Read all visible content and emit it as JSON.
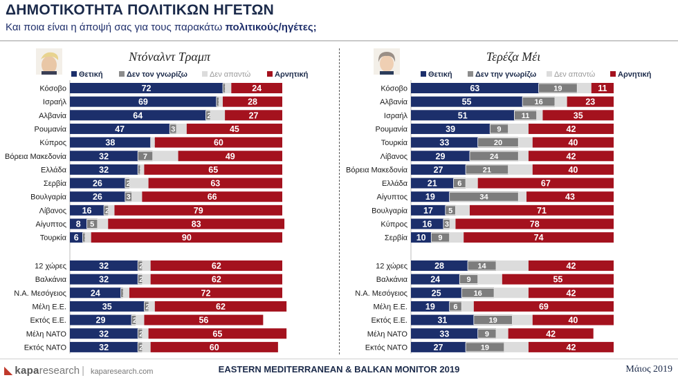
{
  "header": {
    "title": "ΔΗΜΟΤΙΚΟΤΗΤΑ ΠΟΛΙΤΙΚΩΝ ΗΓΕΤΩΝ",
    "subtitle_plain": "Και ποια είναι η άποψή σας για τους παρακάτω ",
    "subtitle_bold": "πολιτικούς/ηγέτες;"
  },
  "footer": {
    "brand_kapa": "kapa",
    "brand_research": "research",
    "site": "kaparesearch.com",
    "center": "EASTERN MEDITERRANEAN & BALKAN MONITOR 2019",
    "date": "Μάιος 2019"
  },
  "colors": {
    "positive": "#1c2f6b",
    "unknown": "#8c8c8c",
    "no_answer": "#dcdcdc",
    "negative": "#a4121e"
  },
  "chart_data": [
    {
      "type": "bar",
      "stacked": true,
      "orientation": "horizontal",
      "title": "Ντόναλντ Τραμπ",
      "legend": [
        "Θετική",
        "Δεν τον γνωρίζω",
        "Δεν απαντώ",
        "Αρνητική"
      ],
      "group1": {
        "categories": [
          "Κόσοβο",
          "Ισραήλ",
          "Αλβανία",
          "Ρουμανία",
          "Κύπρος",
          "Βόρεια Μακεδονία",
          "Ελλάδα",
          "Σερβία",
          "Βουλγαρία",
          "Λίβανος",
          "Αίγυπτος",
          "Τουρκία"
        ],
        "series": [
          {
            "name": "Θετική",
            "values": [
              72,
              69,
              64,
              47,
              38,
              32,
              32,
              26,
              26,
              16,
              8,
              6
            ]
          },
          {
            "name": "Δεν τον γνωρίζω",
            "values": [
              1,
              1,
              2,
              3,
              0,
              7,
              1,
              2,
              3,
              2,
              5,
              1
            ]
          },
          {
            "name": "Δεν απαντώ",
            "values": [
              3,
              2,
              7,
              5,
              2,
              12,
              2,
              9,
              5,
              3,
              5,
              3
            ]
          },
          {
            "name": "Αρνητική",
            "values": [
              24,
              28,
              27,
              45,
              60,
              49,
              65,
              63,
              66,
              79,
              83,
              90
            ]
          }
        ]
      },
      "group2": {
        "categories": [
          "12 χώρες",
          "Βαλκάνια",
          "Ν.Α. Μεσόγειος",
          "Μέλη Ε.Ε.",
          "Εκτός Ε.Ε.",
          "Μέλη ΝΑΤΟ",
          "Εκτός ΝΑΤΟ"
        ],
        "series": [
          {
            "name": "Θετική",
            "values": [
              32,
              32,
              24,
              35,
              29,
              32,
              32
            ]
          },
          {
            "name": "Δεν τον γνωρίζω",
            "values": [
              2,
              2,
              1,
              2,
              2,
              2,
              2
            ]
          },
          {
            "name": "Δεν απαντώ",
            "values": [
              4,
              4,
              3,
              3,
              4,
              3,
              4
            ]
          },
          {
            "name": "Αρνητική",
            "values": [
              62,
              62,
              72,
              62,
              56,
              65,
              60
            ]
          }
        ]
      }
    },
    {
      "type": "bar",
      "stacked": true,
      "orientation": "horizontal",
      "title": "Τερέζα Μέι",
      "legend": [
        "Θετική",
        "Δεν την γνωρίζω",
        "Δεν απαντώ",
        "Αρνητική"
      ],
      "group1": {
        "categories": [
          "Κόσοβο",
          "Αλβανία",
          "Ισραήλ",
          "Ρουμανία",
          "Τουρκία",
          "Λίβανος",
          "Βόρεια Μακεδονία",
          "Ελλάδα",
          "Αίγυπτος",
          "Βουλγαρία",
          "Κύπρος",
          "Σερβία"
        ],
        "series": [
          {
            "name": "Θετική",
            "values": [
              63,
              55,
              51,
              39,
              33,
              29,
              27,
              21,
              19,
              17,
              16,
              10
            ]
          },
          {
            "name": "Δεν την γνωρίζω",
            "values": [
              19,
              16,
              11,
              9,
              20,
              24,
              21,
              6,
              34,
              5,
              3,
              9
            ]
          },
          {
            "name": "Δεν απαντώ",
            "values": [
              7,
              6,
              3,
              10,
              7,
              5,
              12,
              6,
              4,
              7,
              3,
              7
            ]
          },
          {
            "name": "Αρνητική",
            "values": [
              11,
              23,
              35,
              42,
              40,
              42,
              40,
              67,
              43,
              71,
              78,
              74
            ]
          }
        ]
      },
      "group2": {
        "categories": [
          "12 χώρες",
          "Βαλκάνια",
          "Ν.Α. Μεσόγειος",
          "Μέλη Ε.Ε.",
          "Εκτός Ε.Ε.",
          "Μέλη ΝΑΤΟ",
          "Εκτός ΝΑΤΟ"
        ],
        "series": [
          {
            "name": "Θετική",
            "values": [
              28,
              24,
              25,
              19,
              31,
              33,
              27
            ]
          },
          {
            "name": "Δεν την γνωρίζω",
            "values": [
              14,
              9,
              16,
              6,
              19,
              9,
              19
            ]
          },
          {
            "name": "Δεν απαντώ",
            "values": [
              16,
              12,
              17,
              6,
              10,
              6,
              12
            ]
          },
          {
            "name": "Αρνητική",
            "values": [
              42,
              55,
              42,
              69,
              40,
              42,
              42
            ]
          }
        ]
      }
    }
  ]
}
